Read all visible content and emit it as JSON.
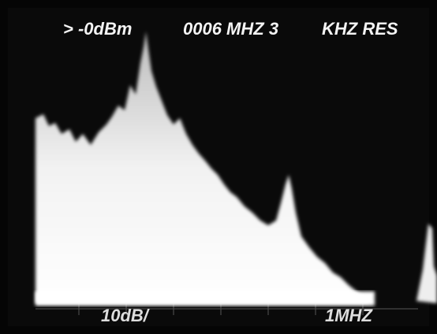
{
  "screen": {
    "top_left": "> -0dBm",
    "top_center": "0006 MHZ 3",
    "top_right": "KHZ RES",
    "bottom_left": "10dB/",
    "bottom_right": "1MHZ"
  }
}
